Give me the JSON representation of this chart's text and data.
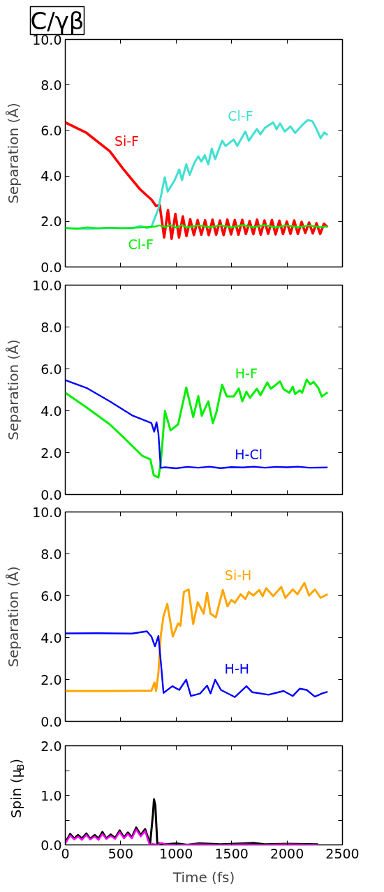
{
  "chart_data": [
    {
      "type": "line",
      "title": "C/γβ",
      "ylabel": "Separation (Å)",
      "xlim": [
        0,
        2500
      ],
      "xticks": [
        {
          "value": 0,
          "label": null
        },
        {
          "value": 500,
          "label": null
        },
        {
          "value": 1000,
          "label": null
        },
        {
          "value": 1500,
          "label": null
        },
        {
          "value": 2000,
          "label": null
        },
        {
          "value": 2500,
          "label": null
        }
      ],
      "ylim": [
        0,
        10
      ],
      "yticks": [
        {
          "value": 0,
          "label": "0.0"
        },
        {
          "value": 2,
          "label": "2.0"
        },
        {
          "value": 4,
          "label": "4.0"
        },
        {
          "value": 6,
          "label": "6.0"
        },
        {
          "value": 8,
          "label": "8.0"
        },
        {
          "value": 10,
          "label": "10.0"
        }
      ],
      "tick_labels": "y",
      "series": [
        {
          "name": "Si-F",
          "color": "#ff0000",
          "x": [
            0,
            192,
            401,
            527,
            673,
            777,
            819,
            851,
            892,
            926,
            959,
            993,
            1026,
            1060,
            1093,
            1127,
            1160,
            1194,
            1227,
            1261,
            1294,
            1328,
            1361,
            1395,
            1428,
            1462,
            1495,
            1529,
            1562,
            1596,
            1629,
            1663,
            1696,
            1730,
            1763,
            1797,
            1830,
            1864,
            1897,
            1931,
            1964,
            1998,
            2031,
            2065,
            2098,
            2132,
            2165,
            2199,
            2232,
            2266,
            2299,
            2333,
            2366
          ],
          "values": [
            6.35,
            5.89,
            5.09,
            4.28,
            3.42,
            2.96,
            2.68,
            2.73,
            1.3,
            2.5,
            1.24,
            2.33,
            1.3,
            2.22,
            1.36,
            2.1,
            1.4,
            2.06,
            1.42,
            2.05,
            1.4,
            2.08,
            1.42,
            2.04,
            1.4,
            2.08,
            1.43,
            2.06,
            1.42,
            2.07,
            1.45,
            2.02,
            1.44,
            2.08,
            1.42,
            2.04,
            1.46,
            2.06,
            1.43,
            2.03,
            1.45,
            2.0,
            1.46,
            2.04,
            1.45,
            1.98,
            1.5,
            1.95,
            1.48,
            1.92,
            1.45,
            1.9,
            1.75
          ]
        },
        {
          "name": "Cl-F",
          "color": "#40e0d0",
          "x": [
            0,
            200,
            400,
            600,
            680,
            730,
            777,
            840,
            897,
            924,
            987,
            1028,
            1053,
            1091,
            1122,
            1164,
            1200,
            1227,
            1258,
            1290,
            1321,
            1352,
            1415,
            1446,
            1519,
            1551,
            1624,
            1655,
            1728,
            1760,
            1802,
            1875,
            1906,
            1937,
            1979,
            2031,
            2073,
            2136,
            2188,
            2230,
            2272,
            2303,
            2335,
            2366
          ],
          "values": [
            1.7,
            1.68,
            1.72,
            1.7,
            1.8,
            1.72,
            1.76,
            2.56,
            3.94,
            3.31,
            3.82,
            4.28,
            3.82,
            4.51,
            4.05,
            4.57,
            4.86,
            4.63,
            4.91,
            4.51,
            5.2,
            4.74,
            5.55,
            5.32,
            5.6,
            5.32,
            5.95,
            5.55,
            6.06,
            5.83,
            6.12,
            6.35,
            6.06,
            6.31,
            5.95,
            6.18,
            5.89,
            6.23,
            6.46,
            6.4,
            6.0,
            5.66,
            5.91,
            5.8
          ]
        },
        {
          "name": "Cl-F",
          "color": "#00ee00",
          "x": [
            0,
            100,
            200,
            300,
            400,
            500,
            600,
            700,
            800,
            850,
            900,
            950,
            1000,
            1050,
            1100,
            1200,
            1300,
            1400,
            1500,
            1600,
            1700,
            1800,
            1900,
            2000,
            2100,
            2200,
            2300,
            2366
          ],
          "values": [
            1.72,
            1.68,
            1.74,
            1.7,
            1.73,
            1.7,
            1.72,
            1.74,
            1.77,
            1.83,
            1.75,
            1.84,
            1.73,
            1.84,
            1.74,
            1.83,
            1.75,
            1.83,
            1.74,
            1.84,
            1.75,
            1.84,
            1.74,
            1.83,
            1.75,
            1.82,
            1.75,
            1.78
          ]
        }
      ]
    },
    {
      "type": "line",
      "ylabel": "Separation (Å)",
      "xlim": [
        0,
        2500
      ],
      "xticks": [
        {
          "value": 0,
          "label": null
        },
        {
          "value": 500,
          "label": null
        },
        {
          "value": 1000,
          "label": null
        },
        {
          "value": 1500,
          "label": null
        },
        {
          "value": 2000,
          "label": null
        },
        {
          "value": 2500,
          "label": null
        }
      ],
      "ylim": [
        0,
        10
      ],
      "yticks": [
        {
          "value": 0,
          "label": "0.0"
        },
        {
          "value": 2,
          "label": "2.0"
        },
        {
          "value": 4,
          "label": "4.0"
        },
        {
          "value": 6,
          "label": "6.0"
        },
        {
          "value": 8,
          "label": "8.0"
        },
        {
          "value": 10,
          "label": "10.0"
        }
      ],
      "tick_labels": "y",
      "series": [
        {
          "name": "H-F",
          "color": "#00ee00",
          "x": [
            0,
            192,
            401,
            527,
            694,
            767,
            798,
            840,
            861,
            899,
            949,
            1018,
            1091,
            1154,
            1200,
            1231,
            1290,
            1331,
            1363,
            1415,
            1457,
            1519,
            1565,
            1597,
            1634,
            1666,
            1728,
            1760,
            1822,
            1854,
            1937,
            1969,
            2021,
            2052,
            2073,
            2115,
            2136,
            2178,
            2209,
            2240,
            2282,
            2314,
            2366
          ],
          "values": [
            4.86,
            4.16,
            3.35,
            2.72,
            1.85,
            1.68,
            0.92,
            0.81,
            1.5,
            3.99,
            3.06,
            3.35,
            5.11,
            3.7,
            4.7,
            3.76,
            4.45,
            3.41,
            3.93,
            5.24,
            4.68,
            4.68,
            5.06,
            4.45,
            4.91,
            4.62,
            5.05,
            4.74,
            5.35,
            5.05,
            5.4,
            5.03,
            4.86,
            5.15,
            4.8,
            4.97,
            4.86,
            5.49,
            5.26,
            5.38,
            5.09,
            4.68,
            4.88
          ]
        },
        {
          "name": "H-Cl",
          "color": "#0000ff",
          "x": [
            0,
            192,
            401,
            610,
            777,
            802,
            823,
            840,
            861,
            900,
            1000,
            1100,
            1200,
            1300,
            1400,
            1500,
            1600,
            1700,
            1800,
            1900,
            2000,
            2100,
            2200,
            2366
          ],
          "values": [
            5.46,
            5.09,
            4.45,
            3.76,
            3.41,
            3.0,
            3.45,
            2.92,
            1.27,
            1.3,
            1.25,
            1.32,
            1.28,
            1.33,
            1.26,
            1.31,
            1.29,
            1.33,
            1.28,
            1.32,
            1.3,
            1.33,
            1.28,
            1.29
          ]
        }
      ]
    },
    {
      "type": "line",
      "ylabel": "Separation (Å)",
      "xlim": [
        0,
        2500
      ],
      "xticks": [
        {
          "value": 0,
          "label": null
        },
        {
          "value": 500,
          "label": null
        },
        {
          "value": 1000,
          "label": null
        },
        {
          "value": 1500,
          "label": null
        },
        {
          "value": 2000,
          "label": null
        },
        {
          "value": 2500,
          "label": null
        }
      ],
      "ylim": [
        0,
        10
      ],
      "yticks": [
        {
          "value": 0,
          "label": "0.0"
        },
        {
          "value": 2,
          "label": "2.0"
        },
        {
          "value": 4,
          "label": "4.0"
        },
        {
          "value": 6,
          "label": "6.0"
        },
        {
          "value": 8,
          "label": "8.0"
        },
        {
          "value": 10,
          "label": "10.0"
        }
      ],
      "tick_labels": "y",
      "series": [
        {
          "name": "Si-H",
          "color": "#ffa500",
          "x": [
            0,
            400,
            777,
            805,
            819,
            840,
            861,
            886,
            920,
            970,
            1018,
            1039,
            1070,
            1112,
            1154,
            1195,
            1248,
            1279,
            1310,
            1358,
            1421,
            1463,
            1498,
            1530,
            1582,
            1624,
            1655,
            1697,
            1749,
            1780,
            1812,
            1875,
            1948,
            1985,
            2052,
            2094,
            2157,
            2199,
            2251,
            2303,
            2366
          ],
          "values": [
            1.45,
            1.45,
            1.47,
            1.85,
            1.45,
            2.31,
            4.08,
            5.03,
            5.61,
            4.05,
            4.68,
            4.57,
            6.18,
            6.3,
            4.65,
            5.69,
            5.14,
            6.14,
            5.14,
            4.97,
            6.27,
            5.49,
            5.8,
            5.66,
            6.07,
            5.84,
            6.18,
            6.01,
            6.27,
            5.98,
            6.36,
            5.98,
            6.42,
            5.9,
            6.3,
            6.07,
            6.61,
            6.01,
            6.3,
            5.9,
            6.07
          ]
        },
        {
          "name": "H-H",
          "color": "#0000ff",
          "x": [
            0,
            300,
            600,
            736,
            777,
            809,
            840,
            861,
            886,
            966,
            1028,
            1091,
            1133,
            1216,
            1279,
            1310,
            1352,
            1404,
            1530,
            1634,
            1687,
            1833,
            1969,
            2052,
            2115,
            2178,
            2251,
            2314,
            2366
          ],
          "values": [
            4.2,
            4.21,
            4.19,
            4.3,
            4.05,
            3.58,
            4.08,
            2.89,
            1.36,
            1.68,
            1.5,
            1.99,
            1.21,
            1.33,
            1.71,
            1.33,
            1.99,
            1.5,
            1.16,
            1.68,
            1.39,
            1.27,
            1.45,
            1.21,
            1.56,
            1.5,
            1.18,
            1.33,
            1.41
          ]
        }
      ]
    },
    {
      "type": "line",
      "xlabel": "Time (fs)",
      "ylabel": "Spin (μ$_{B}$)",
      "xlim": [
        0,
        2500
      ],
      "xticks": [
        0,
        500,
        1000,
        1500,
        2000,
        2500
      ],
      "ylim": [
        0,
        2
      ],
      "yticks": [
        {
          "value": 0,
          "label": "0.0"
        },
        {
          "value": 0.5,
          "label": null
        },
        {
          "value": 1,
          "label": "1.0"
        },
        {
          "value": 1.5,
          "label": null
        },
        {
          "value": 2,
          "label": "2.0"
        }
      ],
      "series": [
        {
          "color": "#000000",
          "x": [
            0,
            45,
            80,
            115,
            150,
            190,
            225,
            265,
            300,
            335,
            370,
            410,
            450,
            490,
            530,
            565,
            600,
            640,
            680,
            720,
            765,
            790,
            800,
            812,
            830,
            850,
            900,
            1000,
            1100,
            1200,
            1400,
            1700,
            1800,
            2000,
            2280
          ],
          "values": [
            0.05,
            0.22,
            0.13,
            0.2,
            0.13,
            0.23,
            0.12,
            0.2,
            0.13,
            0.26,
            0.13,
            0.21,
            0.14,
            0.29,
            0.15,
            0.25,
            0.15,
            0.35,
            0.2,
            0.32,
            0.02,
            0.6,
            0.92,
            0.8,
            0.02,
            0.03,
            0.01,
            0.03,
            0.0,
            0.03,
            0.01,
            0.04,
            0.01,
            0.02,
            0.01
          ]
        },
        {
          "color": "#ff00ff",
          "x": [
            0,
            45,
            80,
            115,
            150,
            190,
            225,
            265,
            300,
            335,
            370,
            410,
            450,
            490,
            530,
            565,
            600,
            640,
            680,
            720,
            760,
            790,
            830,
            870,
            900,
            1000,
            1200,
            1400,
            1600,
            1800,
            2000,
            2280
          ],
          "values": [
            0.03,
            0.19,
            0.11,
            0.17,
            0.1,
            0.2,
            0.11,
            0.17,
            0.1,
            0.22,
            0.12,
            0.18,
            0.12,
            0.26,
            0.13,
            0.22,
            0.13,
            0.31,
            0.17,
            0.28,
            0.0,
            0.02,
            0.0,
            0.04,
            0.01,
            0.0,
            0.01,
            0.0,
            0.01,
            0.0,
            0.01,
            0.0
          ]
        }
      ]
    }
  ]
}
